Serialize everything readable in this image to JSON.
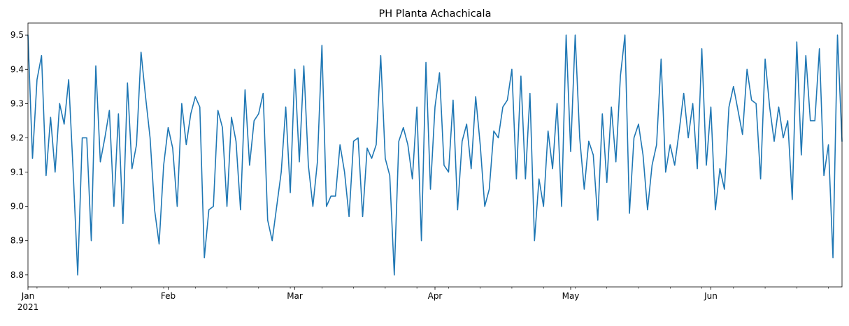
{
  "chart_data": {
    "type": "line",
    "title": "PH Planta Achachicala",
    "xlabel": "",
    "ylabel": "",
    "xlim": [
      "2021-01-01",
      "2021-06-30"
    ],
    "ylim": [
      8.765,
      9.535
    ],
    "yticks": [
      8.8,
      8.9,
      9.0,
      9.1,
      9.2,
      9.3,
      9.4,
      9.5
    ],
    "ytick_labels": [
      "8.8",
      "8.9",
      "9.0",
      "9.1",
      "9.2",
      "9.3",
      "9.4",
      "9.5"
    ],
    "xticks": [
      "2021-01-01",
      "2021-02-01",
      "2021-03-01",
      "2021-04-01",
      "2021-05-01",
      "2021-06-01"
    ],
    "xtick_labels": [
      "Jan",
      "Feb",
      "Mar",
      "Apr",
      "May",
      "Jun"
    ],
    "xtick_sublabel": "2021",
    "grid": false,
    "line_color": "#1f77b4",
    "series": [
      {
        "start_date": "2021-01-01",
        "frequency": "daily",
        "values": [
          9.5,
          9.14,
          9.37,
          9.44,
          9.09,
          9.26,
          9.1,
          9.3,
          9.24,
          9.37,
          9.1,
          8.8,
          9.2,
          9.2,
          8.9,
          9.41,
          9.13,
          9.2,
          9.28,
          9.0,
          9.27,
          8.95,
          9.36,
          9.11,
          9.18,
          9.45,
          9.32,
          9.2,
          8.99,
          8.89,
          9.12,
          9.23,
          9.17,
          9.0,
          9.3,
          9.18,
          9.27,
          9.32,
          9.29,
          8.85,
          8.99,
          9.0,
          9.28,
          9.23,
          9.0,
          9.26,
          9.19,
          8.99,
          9.34,
          9.12,
          9.25,
          9.27,
          9.33,
          8.96,
          8.9,
          9.0,
          9.1,
          9.29,
          9.04,
          9.4,
          9.13,
          9.41,
          9.12,
          9.0,
          9.13,
          9.47,
          9.0,
          9.03,
          9.03,
          9.18,
          9.1,
          8.97,
          9.19,
          9.2,
          8.97,
          9.17,
          9.14,
          9.18,
          9.44,
          9.14,
          9.09,
          8.8,
          9.19,
          9.23,
          9.18,
          9.08,
          9.29,
          8.9,
          9.42,
          9.05,
          9.29,
          9.39,
          9.12,
          9.1,
          9.31,
          8.99,
          9.19,
          9.24,
          9.11,
          9.32,
          9.18,
          9.0,
          9.05,
          9.22,
          9.2,
          9.29,
          9.31,
          9.4,
          9.08,
          9.38,
          9.08,
          9.33,
          8.9,
          9.08,
          9.0,
          9.22,
          9.11,
          9.3,
          9.0,
          9.5,
          9.16,
          9.5,
          9.2,
          9.05,
          9.19,
          9.15,
          8.96,
          9.27,
          9.07,
          9.29,
          9.13,
          9.38,
          9.5,
          8.98,
          9.2,
          9.24,
          9.15,
          8.99,
          9.12,
          9.18,
          9.43,
          9.1,
          9.18,
          9.12,
          9.22,
          9.33,
          9.2,
          9.3,
          9.11,
          9.46,
          9.12,
          9.29,
          8.99,
          9.11,
          9.05,
          9.29,
          9.35,
          9.28,
          9.21,
          9.4,
          9.31,
          9.3,
          9.08,
          9.43,
          9.29,
          9.19,
          9.29,
          9.2,
          9.25,
          9.02,
          9.48,
          9.15,
          9.44,
          9.25,
          9.25,
          9.46,
          9.09,
          9.18,
          8.85,
          9.5,
          9.19
        ]
      }
    ]
  }
}
